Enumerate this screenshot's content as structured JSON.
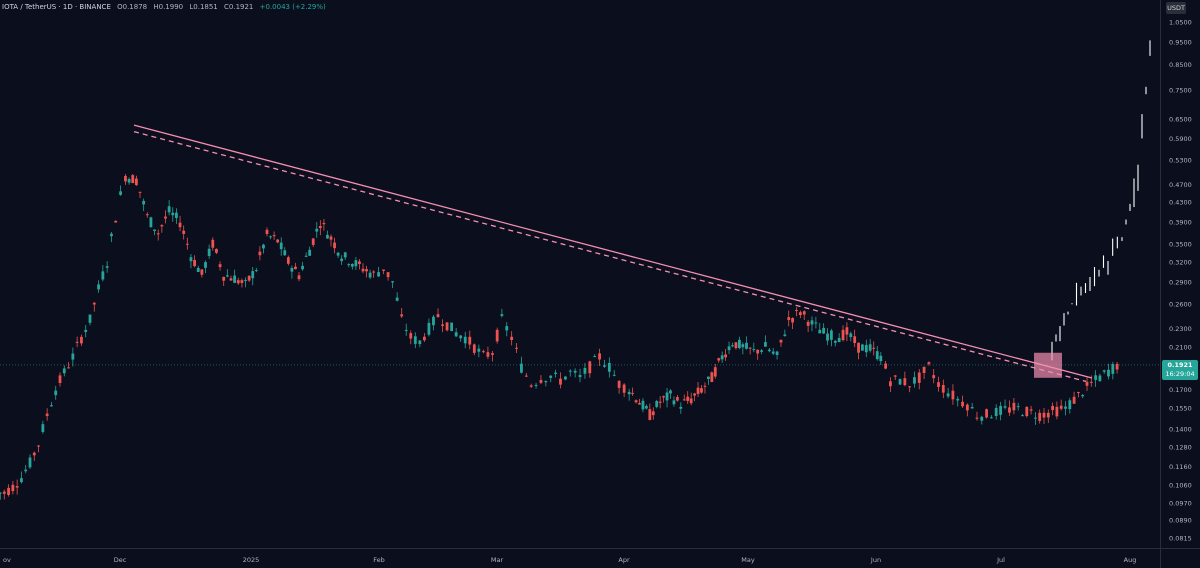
{
  "header": {
    "symbol": "IOTA / TetherUS · 1D · BINANCE",
    "open": "O0.1878",
    "high": "H0.1990",
    "low": "L0.1851",
    "close": "C0.1921",
    "change": "+0.0043 (+2.29%)"
  },
  "currency_badge": "USDT",
  "last_price": {
    "value": "0.1921",
    "countdown": "16:29:04"
  },
  "colors": {
    "background": "#0b0e1d",
    "up": "#26a69a",
    "down": "#ef5350",
    "trendline": "#f48fb1",
    "projection": "#ffffff",
    "breakout_box": "#f48fb1",
    "price_line": "#26a69a"
  },
  "chart_data": {
    "type": "candlestick",
    "y_scale": "log",
    "y_ticks": [
      "1.0500",
      "0.9500",
      "0.8500",
      "0.7500",
      "0.6500",
      "0.5900",
      "0.5300",
      "0.4700",
      "0.4300",
      "0.3900",
      "0.3500",
      "0.3200",
      "0.2900",
      "0.2600",
      "0.2300",
      "0.2100",
      "0.1921",
      "0.1700",
      "0.1550",
      "0.1400",
      "0.1280",
      "0.1160",
      "0.1060",
      "0.0970",
      "0.0890",
      "0.0815"
    ],
    "x_ticks": [
      "ov",
      "Dec",
      "2025",
      "Feb",
      "Mar",
      "Apr",
      "May",
      "Jun",
      "Jul",
      "Aug"
    ],
    "ylim": [
      0.08,
      1.08
    ],
    "grid": false,
    "legend": "none",
    "price_anchors": [
      [
        "Nov",
        0.102
      ],
      [
        "Nov",
        0.105
      ],
      [
        "Nov",
        0.11
      ],
      [
        "Nov",
        0.118
      ],
      [
        "Nov",
        0.13
      ],
      [
        "Nov",
        0.15
      ],
      [
        "Nov",
        0.17
      ],
      [
        "Nov",
        0.185
      ],
      [
        "Nov",
        0.2
      ],
      [
        "Nov",
        0.22
      ],
      [
        "Nov",
        0.24
      ],
      [
        "Nov",
        0.28
      ],
      [
        "Nov",
        0.32
      ],
      [
        "Nov",
        0.4
      ],
      [
        "Dec",
        0.49
      ],
      [
        "Dec",
        0.48
      ],
      [
        "Dec",
        0.4
      ],
      [
        "Dec",
        0.37
      ],
      [
        "Dec",
        0.41
      ],
      [
        "Dec",
        0.39
      ],
      [
        "Dec",
        0.33
      ],
      [
        "Dec",
        0.3
      ],
      [
        "Dec",
        0.35
      ],
      [
        "Dec",
        0.3
      ],
      [
        "Dec",
        0.295
      ],
      [
        "Dec",
        0.285
      ],
      [
        "2025",
        0.31
      ],
      [
        "2025",
        0.365
      ],
      [
        "2025",
        0.355
      ],
      [
        "2025",
        0.32
      ],
      [
        "2025",
        0.3
      ],
      [
        "2025",
        0.34
      ],
      [
        "2025",
        0.39
      ],
      [
        "2025",
        0.36
      ],
      [
        "2025",
        0.33
      ],
      [
        "2025",
        0.32
      ],
      [
        "2025",
        0.31
      ],
      [
        "2025",
        0.3
      ],
      [
        "Feb",
        0.31
      ],
      [
        "Feb",
        0.29
      ],
      [
        "Feb",
        0.24
      ],
      [
        "Feb",
        0.22
      ],
      [
        "Feb",
        0.215
      ],
      [
        "Feb",
        0.23
      ],
      [
        "Feb",
        0.245
      ],
      [
        "Feb",
        0.235
      ],
      [
        "Feb",
        0.225
      ],
      [
        "Feb",
        0.22
      ],
      [
        "Feb",
        0.21
      ],
      [
        "Feb",
        0.2
      ],
      [
        "Feb",
        0.205
      ],
      [
        "Mar",
        0.24
      ],
      [
        "Mar",
        0.22
      ],
      [
        "Mar",
        0.19
      ],
      [
        "Mar",
        0.175
      ],
      [
        "Mar",
        0.18
      ],
      [
        "Mar",
        0.182
      ],
      [
        "Mar",
        0.178
      ],
      [
        "Mar",
        0.185
      ],
      [
        "Mar",
        0.18
      ],
      [
        "Mar",
        0.19
      ],
      [
        "Mar",
        0.2
      ],
      [
        "Mar",
        0.19
      ],
      [
        "Mar",
        0.175
      ],
      [
        "Apr",
        0.17
      ],
      [
        "Apr",
        0.16
      ],
      [
        "Apr",
        0.15
      ],
      [
        "Apr",
        0.16
      ],
      [
        "Apr",
        0.165
      ],
      [
        "Apr",
        0.158
      ],
      [
        "Apr",
        0.162
      ],
      [
        "Apr",
        0.17
      ],
      [
        "Apr",
        0.18
      ],
      [
        "Apr",
        0.2
      ],
      [
        "Apr",
        0.215
      ],
      [
        "Apr",
        0.21
      ],
      [
        "May",
        0.205
      ],
      [
        "May",
        0.21
      ],
      [
        "May",
        0.2
      ],
      [
        "May",
        0.24
      ],
      [
        "May",
        0.25
      ],
      [
        "May",
        0.235
      ],
      [
        "May",
        0.225
      ],
      [
        "May",
        0.22
      ],
      [
        "May",
        0.225
      ],
      [
        "May",
        0.21
      ],
      [
        "May",
        0.208
      ],
      [
        "Jun",
        0.2
      ],
      [
        "Jun",
        0.178
      ],
      [
        "Jun",
        0.178
      ],
      [
        "Jun",
        0.175
      ],
      [
        "Jun",
        0.18
      ],
      [
        "Jun",
        0.19
      ],
      [
        "Jun",
        0.175
      ],
      [
        "Jun",
        0.168
      ],
      [
        "Jun",
        0.162
      ],
      [
        "Jun",
        0.158
      ],
      [
        "Jun",
        0.15
      ],
      [
        "Jun",
        0.15
      ],
      [
        "Jun",
        0.152
      ],
      [
        "Jul",
        0.155
      ],
      [
        "Jul",
        0.15
      ],
      [
        "Jul",
        0.155
      ],
      [
        "Jul",
        0.175
      ],
      [
        "Jul",
        0.192
      ]
    ],
    "projection": [
      [
        "Jul",
        0.21
      ],
      [
        "Jul",
        0.26
      ],
      [
        "Jul",
        0.29
      ],
      [
        "Aug",
        0.32
      ],
      [
        "Aug",
        0.36
      ],
      [
        "Aug",
        0.48
      ],
      [
        "Aug",
        0.9
      ]
    ],
    "trendlines": [
      {
        "style": "solid",
        "from": [
          "Dec",
          0.63
        ],
        "to": [
          "Jul",
          0.18
        ]
      },
      {
        "style": "dashed",
        "from": [
          "Dec",
          0.61
        ],
        "to": [
          "Jul",
          0.177
        ]
      }
    ],
    "breakout_zone": {
      "from": "Jul",
      "to": "Jul",
      "price_low": 0.182,
      "price_high": 0.202
    }
  }
}
